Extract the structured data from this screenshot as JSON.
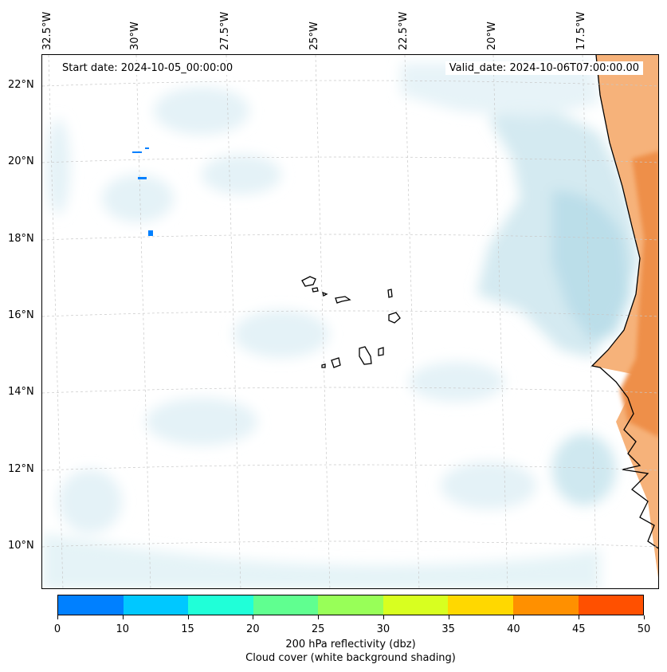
{
  "map": {
    "start_date": "Start date: 2024-10-05_00:00:00",
    "valid_date": "Valid_date: 2024-10-06T07:00:00.00",
    "lon_labels": [
      "32.5°W",
      "30°W",
      "27.5°W",
      "25°W",
      "22.5°W",
      "20°W",
      "17.5°W"
    ],
    "lat_labels": [
      "22°N",
      "20°N",
      "18°N",
      "16°N",
      "14°N",
      "12°N",
      "10°N"
    ],
    "colors": {
      "cloud_light": "#e4f2f7",
      "cloud_mid": "#cfe8f0",
      "cloud_dense": "#b9dde9",
      "land_warm": "#f6b27a",
      "land_hot": "#ee8f4a",
      "coast": "#000000",
      "grid": "#c8c8c8",
      "echo": "#0080ff"
    }
  },
  "colorbar": {
    "ticks": [
      "0",
      "10",
      "15",
      "20",
      "25",
      "30",
      "35",
      "40",
      "45",
      "50"
    ],
    "colors": [
      "#0080ff",
      "#00c8ff",
      "#20ffd8",
      "#60ff90",
      "#98ff58",
      "#d8ff20",
      "#ffd800",
      "#ff9000",
      "#ff5000"
    ],
    "label_line1": "200 hPa reflectivity (dbz)",
    "label_line2": "Cloud cover (white background shading)"
  }
}
